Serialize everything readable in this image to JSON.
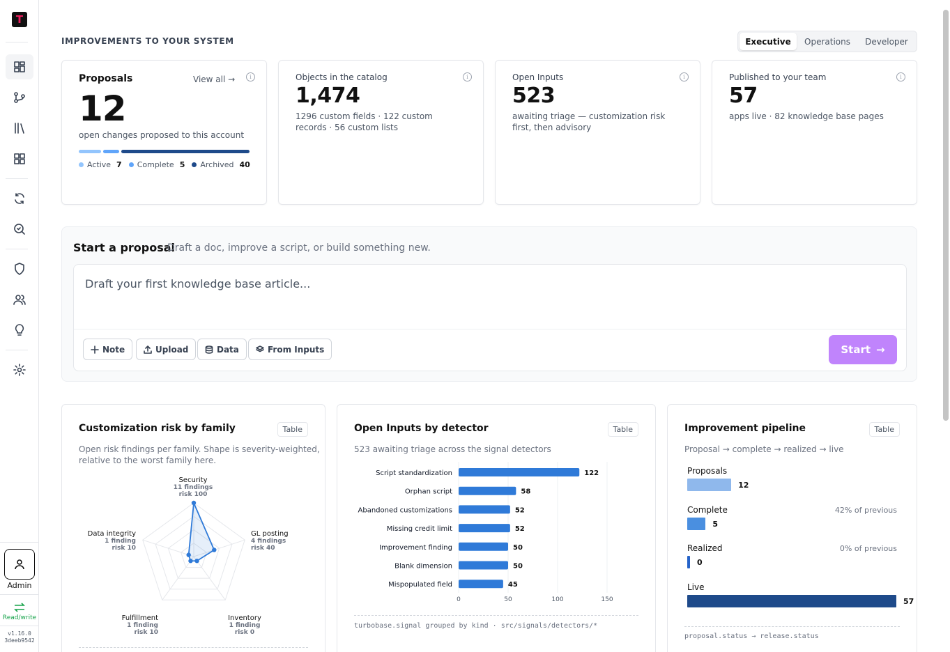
{
  "brand": {
    "logo_letter": "T",
    "logo_color": "#ec1c5b"
  },
  "sidebar": {
    "items": [
      {
        "name": "dashboard-icon",
        "active": true
      },
      {
        "name": "branch-icon"
      },
      {
        "name": "library-icon"
      },
      {
        "name": "apps-grid-icon"
      },
      {
        "name": "sync-icon"
      },
      {
        "name": "search-scan-icon"
      },
      {
        "name": "shield-icon"
      },
      {
        "name": "users-icon"
      },
      {
        "name": "lightbulb-icon"
      },
      {
        "name": "gear-icon"
      }
    ],
    "user_label": "Admin",
    "access_label": "Read/write",
    "version": "v1.16.0",
    "build": "3deeb9542"
  },
  "header": {
    "title": "IMPROVEMENTS TO YOUR SYSTEM",
    "views": [
      "Executive",
      "Operations",
      "Developer"
    ],
    "active_view": "Executive"
  },
  "cards": {
    "proposals": {
      "title": "Proposals",
      "view_all": "View all →",
      "value": "12",
      "subtitle": "open changes proposed to this account",
      "legend": [
        {
          "label": "Active",
          "value": "7",
          "color": "#93c5fd"
        },
        {
          "label": "Complete",
          "value": "5",
          "color": "#60a5fa"
        },
        {
          "label": "Archived",
          "value": "40",
          "color": "#1e4a8a"
        }
      ]
    },
    "catalog": {
      "label": "Objects in the catalog",
      "value": "1,474",
      "subtitle": "1296 custom fields · 122 custom records · 56 custom lists"
    },
    "inputs": {
      "label": "Open Inputs",
      "value": "523",
      "subtitle": "awaiting triage — customization risk first, then advisory"
    },
    "published": {
      "label": "Published to your team",
      "value": "57",
      "subtitle": "apps live · 82 knowledge base pages"
    }
  },
  "start": {
    "title": "Start a proposal",
    "description": "Draft a doc, improve a script, or build something new.",
    "placeholder": "Draft your first knowledge base article...",
    "chips": [
      "Note",
      "Upload",
      "Data",
      "From Inputs"
    ],
    "button": "Start",
    "button_color": "#c084fc"
  },
  "panels": {
    "risk": {
      "title": "Customization risk by family",
      "table_btn": "Table",
      "description_line1": "Open risk findings per family. Shape is severity-weighted,",
      "description_line2": "relative to the worst family here.",
      "families": [
        {
          "name": "Security",
          "findings": "11 findings",
          "risk": "risk 100"
        },
        {
          "name": "GL posting",
          "findings": "4 findings",
          "risk": "risk 40"
        },
        {
          "name": "Inventory",
          "findings": "1 finding",
          "risk": "risk 0"
        },
        {
          "name": "Fulfillment",
          "findings": "1 finding",
          "risk": "risk 10"
        },
        {
          "name": "Data integrity",
          "findings": "1 finding",
          "risk": "risk 10"
        }
      ]
    },
    "detectors": {
      "title": "Open Inputs by detector",
      "table_btn": "Table",
      "description": "523 awaiting triage across the signal detectors",
      "footer": "turbobase.signal grouped by kind · src/signals/detectors/*"
    },
    "pipeline": {
      "title": "Improvement pipeline",
      "table_btn": "Table",
      "description": "Proposal → complete → realized → live",
      "stages": [
        {
          "label": "Proposals",
          "value": "12",
          "pct": "",
          "color": "#8fb8ec"
        },
        {
          "label": "Complete",
          "value": "5",
          "pct": "42% of previous",
          "color": "#4a8fe0"
        },
        {
          "label": "Realized",
          "value": "0",
          "pct": "0% of previous",
          "color": "#2563c9"
        },
        {
          "label": "Live",
          "value": "57",
          "pct": "",
          "color": "#1e4a8a"
        }
      ],
      "footer": "proposal.status → release.status"
    }
  },
  "chart_data": [
    {
      "type": "bar",
      "orientation": "horizontal",
      "categories": [
        "Script standardization",
        "Orphan script",
        "Abandoned customizations",
        "Missing credit limit",
        "Improvement finding",
        "Blank dimension",
        "Mispopulated field"
      ],
      "values": [
        122,
        58,
        52,
        52,
        50,
        50,
        45
      ],
      "xticks": [
        "0",
        "50",
        "100",
        "150"
      ],
      "xlim": [
        0,
        150
      ],
      "color": "#2f7ad8"
    },
    {
      "type": "radar",
      "categories": [
        "Security",
        "GL posting",
        "Inventory",
        "Fulfillment",
        "Data integrity"
      ],
      "values": [
        100,
        40,
        0,
        10,
        10
      ],
      "max": 100,
      "color": "#2f7ad8"
    }
  ]
}
